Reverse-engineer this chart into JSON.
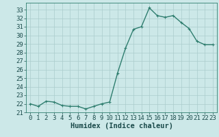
{
  "x": [
    0,
    1,
    2,
    3,
    4,
    5,
    6,
    7,
    8,
    9,
    10,
    11,
    12,
    13,
    14,
    15,
    16,
    17,
    18,
    19,
    20,
    21,
    22,
    23
  ],
  "y": [
    22.0,
    21.7,
    22.3,
    22.2,
    21.8,
    21.7,
    21.7,
    21.4,
    21.7,
    22.0,
    22.2,
    25.6,
    28.5,
    30.7,
    31.0,
    33.2,
    32.3,
    32.1,
    32.3,
    31.5,
    30.8,
    29.3,
    28.9,
    28.9
  ],
  "line_color": "#2e7d6e",
  "marker": "+",
  "marker_size": 3,
  "bg_color": "#cce8e8",
  "grid_color": "#aacccc",
  "xlabel": "Humidex (Indice chaleur)",
  "xlim": [
    -0.5,
    23.5
  ],
  "ylim": [
    21,
    33.8
  ],
  "yticks": [
    21,
    22,
    23,
    24,
    25,
    26,
    27,
    28,
    29,
    30,
    31,
    32,
    33
  ],
  "xticks": [
    0,
    1,
    2,
    3,
    4,
    5,
    6,
    7,
    8,
    9,
    10,
    11,
    12,
    13,
    14,
    15,
    16,
    17,
    18,
    19,
    20,
    21,
    22,
    23
  ],
  "tick_fontsize": 6.5,
  "xlabel_fontsize": 7.5,
  "linewidth": 1.0,
  "markeredgewidth": 0.8
}
